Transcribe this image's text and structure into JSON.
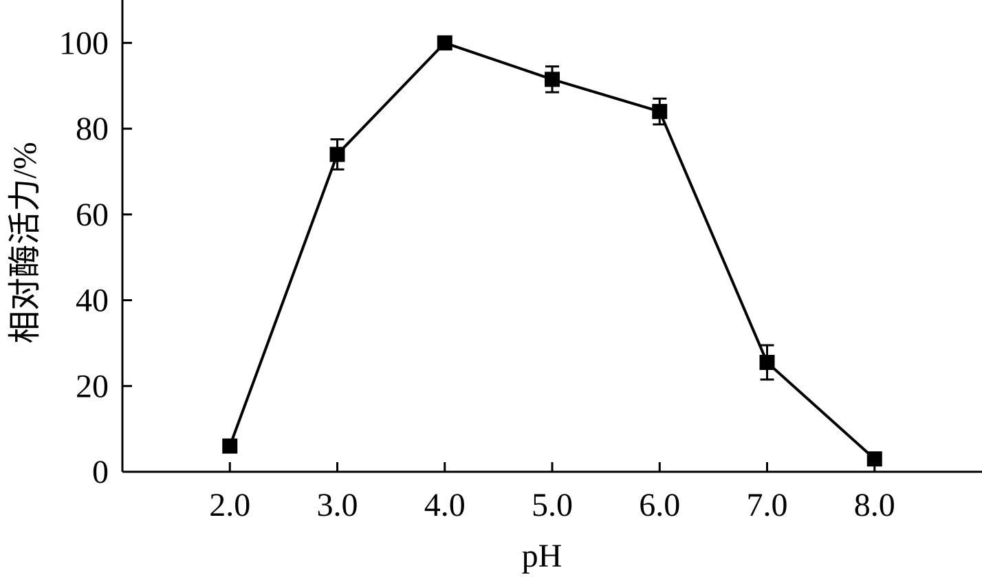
{
  "chart_data": {
    "type": "line",
    "title": "",
    "xlabel": "pH",
    "ylabel": "相对酶活力/%",
    "x": [
      2.0,
      3.0,
      4.0,
      5.0,
      6.0,
      7.0,
      8.0
    ],
    "x_tick_labels": [
      "2.0",
      "3.0",
      "4.0",
      "5.0",
      "6.0",
      "7.0",
      "8.0"
    ],
    "y_ticks": [
      0,
      20,
      40,
      60,
      80,
      100
    ],
    "y_tick_labels": [
      "0",
      "20",
      "40",
      "60",
      "80",
      "100"
    ],
    "xlim": [
      1.0,
      9.0
    ],
    "ylim": [
      0,
      110
    ],
    "grid": false,
    "series": [
      {
        "values": [
          6,
          74,
          100,
          91.5,
          84,
          25.5,
          3
        ],
        "errors": [
          0,
          3.5,
          0,
          3,
          3,
          4,
          0
        ],
        "marker": "square",
        "color": "#000000"
      }
    ]
  }
}
